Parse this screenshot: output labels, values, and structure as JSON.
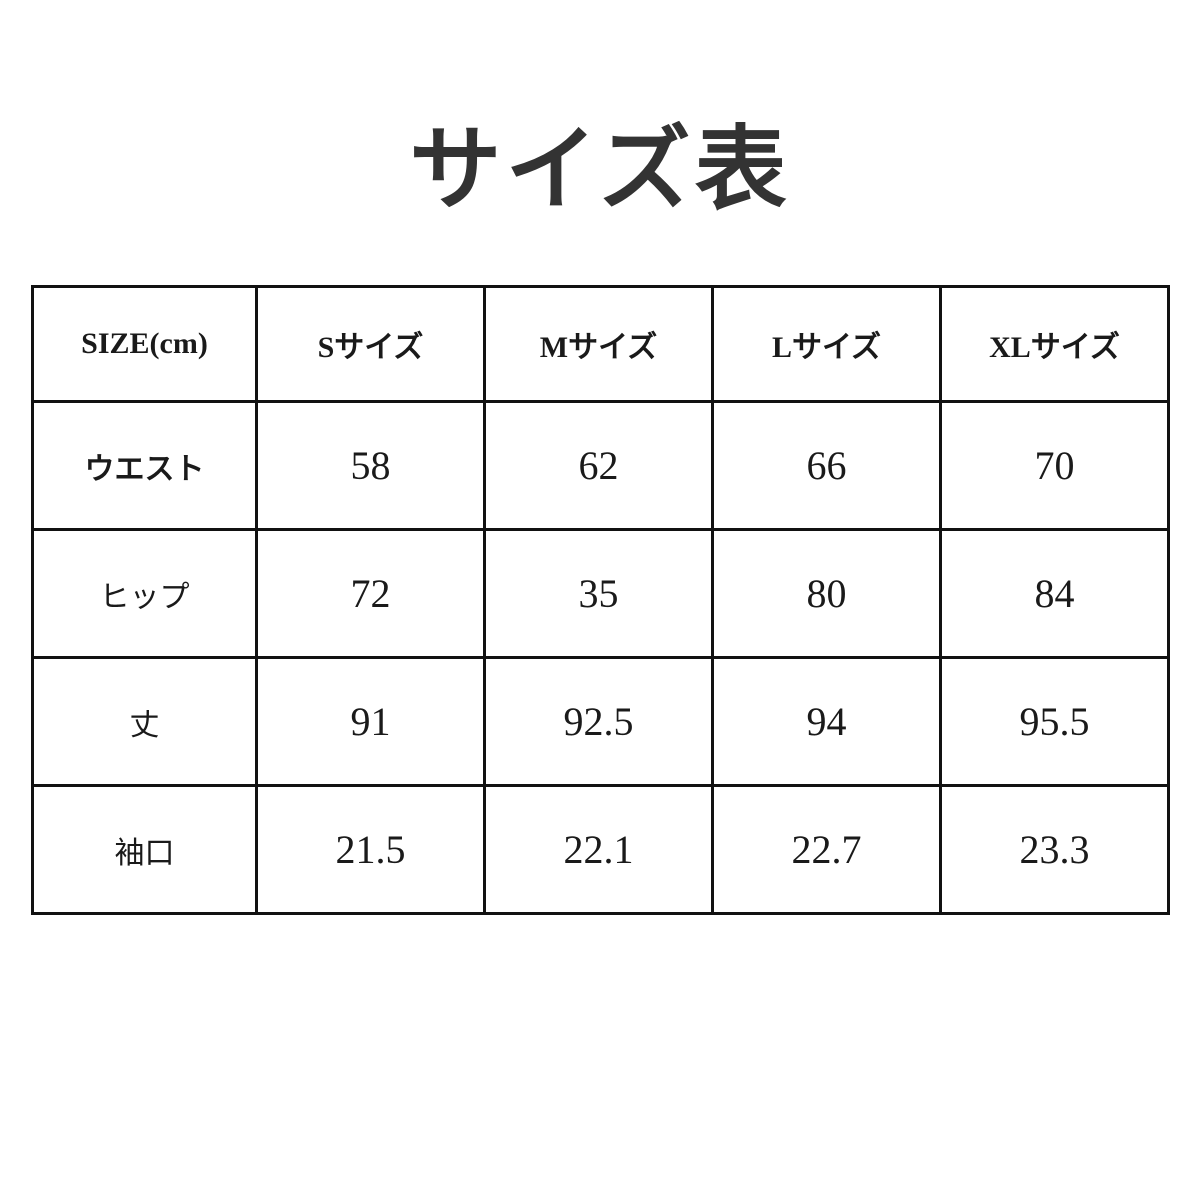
{
  "title": "サイズ表",
  "table": {
    "headers": [
      "SIZE(cm)",
      "Sサイズ",
      "Mサイズ",
      "Lサイズ",
      "XLサイズ"
    ],
    "rows": [
      {
        "label": "ウエスト",
        "values": [
          "58",
          "62",
          "66",
          "70"
        ]
      },
      {
        "label": "ヒップ",
        "values": [
          "72",
          "35",
          "80",
          "84"
        ]
      },
      {
        "label": "丈",
        "values": [
          "91",
          "92.5",
          "94",
          "95.5"
        ]
      },
      {
        "label": "袖口",
        "values": [
          "21.5",
          "22.1",
          "22.7",
          "23.3"
        ]
      }
    ]
  }
}
